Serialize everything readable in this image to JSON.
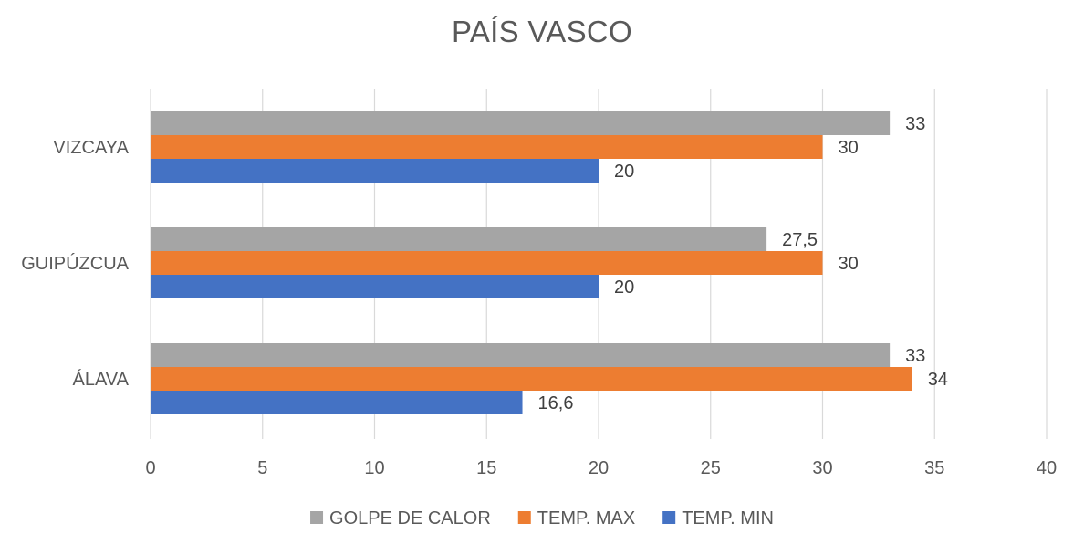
{
  "chart_data": {
    "type": "bar",
    "orientation": "horizontal",
    "title": "PAÍS VASCO",
    "categories": [
      "VIZCAYA",
      "GUIPÚZCUA",
      "ÁLAVA"
    ],
    "series": [
      {
        "name": "GOLPE DE CALOR",
        "color": "#a5a5a5",
        "values": [
          33,
          27.5,
          33
        ],
        "labels": [
          "33",
          "27,5",
          "33"
        ]
      },
      {
        "name": "TEMP. MAX",
        "color": "#ed7d31",
        "values": [
          30,
          30,
          34
        ],
        "labels": [
          "30",
          "30",
          "34"
        ]
      },
      {
        "name": "TEMP. MIN",
        "color": "#4472c4",
        "values": [
          20,
          20,
          16.6
        ],
        "labels": [
          "20",
          "20",
          "16,6"
        ]
      }
    ],
    "xlim": [
      0,
      40
    ],
    "xticks": [
      0,
      5,
      10,
      15,
      20,
      25,
      30,
      35,
      40
    ],
    "xlabel": "",
    "ylabel": "",
    "grid": true,
    "legend_position": "bottom"
  }
}
